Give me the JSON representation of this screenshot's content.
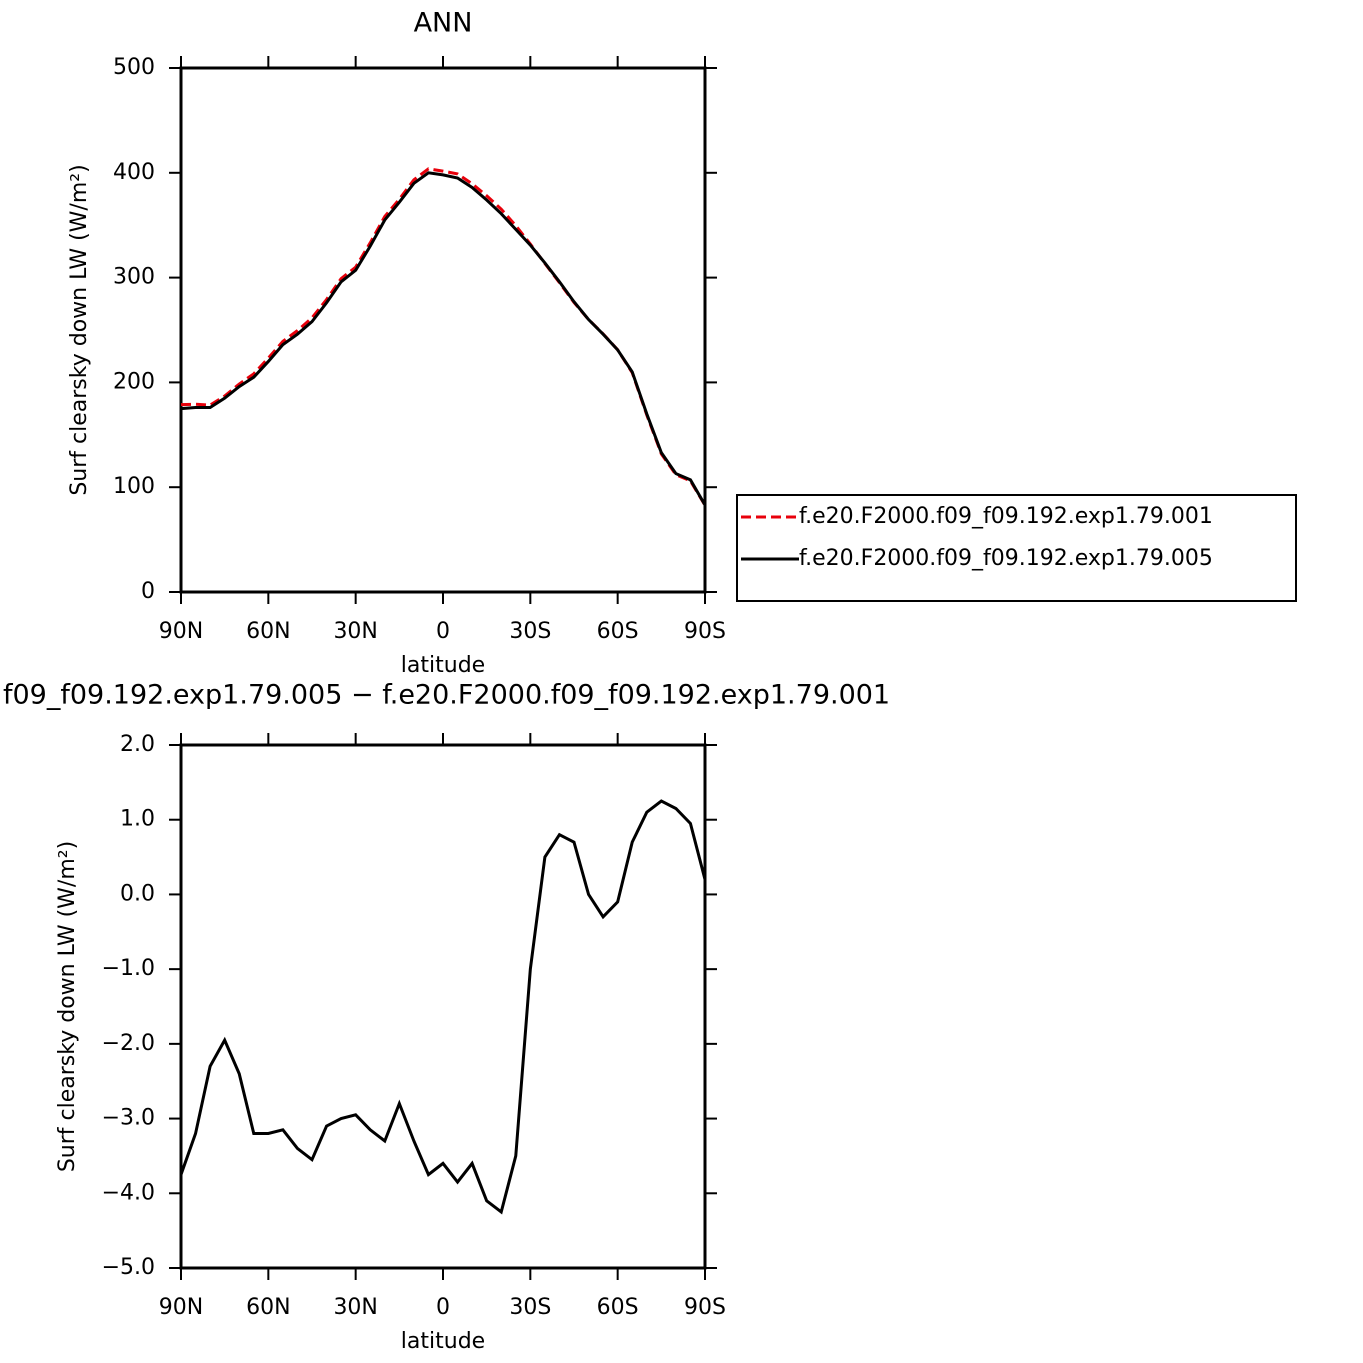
{
  "chart_data": [
    {
      "type": "line",
      "title": "ANN",
      "xlabel": "latitude",
      "ylabel": "Surf clearsky down LW (W/m²)",
      "x": [
        90,
        85,
        80,
        75,
        70,
        65,
        60,
        55,
        50,
        45,
        40,
        35,
        30,
        25,
        20,
        15,
        10,
        5,
        0,
        -5,
        -10,
        -15,
        -20,
        -25,
        -30,
        -35,
        -40,
        -45,
        -50,
        -55,
        -60,
        -65,
        -70,
        -75,
        -80,
        -85,
        -90
      ],
      "xlim": [
        90,
        -90
      ],
      "xticks": [
        {
          "value": 90,
          "label": "90N"
        },
        {
          "value": 60,
          "label": "60N"
        },
        {
          "value": 30,
          "label": "30N"
        },
        0,
        {
          "value": -30,
          "label": "30S"
        },
        {
          "value": -60,
          "label": "60S"
        },
        {
          "value": -90,
          "label": "90S"
        }
      ],
      "ylim": [
        0,
        500
      ],
      "yticks": [
        0,
        100,
        200,
        300,
        400,
        500
      ],
      "legend": "right",
      "series": [
        {
          "name": "f.e20.F2000.f09_f09.192.exp1.79.001",
          "color": "#e8000b",
          "line_style": "dashed",
          "values": [
            178.8,
            179.2,
            178.3,
            187,
            198.4,
            208.2,
            223.2,
            239.2,
            249.4,
            261.6,
            279.1,
            299,
            310,
            333.2,
            358.3,
            374.8,
            393.3,
            403.8,
            401.6,
            398.9,
            389.6,
            378.1,
            365.3,
            349.5,
            332,
            313.5,
            295.2,
            276.3,
            260,
            246.3,
            231.1,
            209.3,
            168.9,
            131.8,
            111.9,
            106,
            82.8
          ]
        },
        {
          "name": "f.e20.F2000.f09_f09.192.exp1.79.005",
          "color": "#000000",
          "line_style": "solid",
          "values": [
            175,
            176,
            176,
            185,
            196,
            205,
            220,
            236,
            246,
            258,
            276,
            296,
            307,
            330,
            355,
            372,
            390,
            400,
            398,
            395,
            386,
            374,
            361,
            346,
            331,
            314,
            296,
            277,
            260,
            246,
            231,
            210,
            170,
            133,
            113,
            107,
            83
          ]
        }
      ]
    },
    {
      "type": "line",
      "title": "f09_f09.192.exp1.79.005 − f.e20.F2000.f09_f09.192.exp1.79.001",
      "xlabel": "latitude",
      "ylabel": "Surf clearsky down LW (W/m²)",
      "x": [
        90,
        85,
        80,
        75,
        70,
        65,
        60,
        55,
        50,
        45,
        40,
        35,
        30,
        25,
        20,
        15,
        10,
        5,
        0,
        -5,
        -10,
        -15,
        -20,
        -25,
        -30,
        -35,
        -40,
        -45,
        -50,
        -55,
        -60,
        -65,
        -70,
        -75,
        -80,
        -85,
        -90
      ],
      "xlim": [
        90,
        -90
      ],
      "xticks": [
        {
          "value": 90,
          "label": "90N"
        },
        {
          "value": 60,
          "label": "60N"
        },
        {
          "value": 30,
          "label": "30N"
        },
        0,
        {
          "value": -30,
          "label": "30S"
        },
        {
          "value": -60,
          "label": "60S"
        },
        {
          "value": -90,
          "label": "90S"
        }
      ],
      "ylim": [
        -5,
        2
      ],
      "yticks": [
        {
          "value": -5,
          "label": "−5.0"
        },
        {
          "value": -4,
          "label": "−4.0"
        },
        {
          "value": -3,
          "label": "−3.0"
        },
        {
          "value": -2,
          "label": "−2.0"
        },
        {
          "value": -1,
          "label": "−1.0"
        },
        {
          "value": 0,
          "label": "0.0"
        },
        {
          "value": 1,
          "label": "1.0"
        },
        {
          "value": 2,
          "label": "2.0"
        }
      ],
      "series": [
        {
          "color": "#000000",
          "line_style": "solid",
          "values": [
            -3.75,
            -3.2,
            -2.3,
            -1.95,
            -2.4,
            -3.2,
            -3.2,
            -3.15,
            -3.4,
            -3.55,
            -3.1,
            -3.0,
            -2.95,
            -3.15,
            -3.3,
            -2.8,
            -3.3,
            -3.75,
            -3.6,
            -3.85,
            -3.6,
            -4.1,
            -4.25,
            -3.5,
            -1.0,
            0.5,
            0.8,
            0.7,
            0.0,
            -0.3,
            -0.1,
            0.7,
            1.1,
            1.25,
            1.15,
            0.95,
            0.2
          ]
        }
      ]
    }
  ]
}
